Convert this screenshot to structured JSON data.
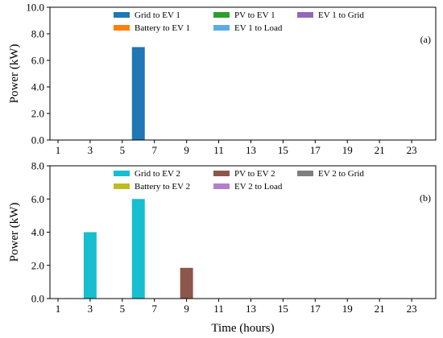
{
  "chart_data": [
    {
      "type": "bar",
      "panel_label": "(a)",
      "ylabel": "Power (kW)",
      "xlabel": "",
      "ylim": [
        0,
        10
      ],
      "yticks": [
        "0.0",
        "2.0",
        "4.0",
        "6.0",
        "8.0",
        "10.0"
      ],
      "xlim": [
        0.5,
        24.5
      ],
      "xticks": [
        "1",
        "3",
        "5",
        "7",
        "9",
        "11",
        "13",
        "15",
        "17",
        "19",
        "21",
        "23"
      ],
      "legend_position": "top-center",
      "series": [
        {
          "name": "Grid to EV 1",
          "color": "#1f77b4",
          "points": [
            {
              "x": 6,
              "y": 7.0
            }
          ]
        },
        {
          "name": "Battery to EV 1",
          "color": "#ff7f0e",
          "points": []
        },
        {
          "name": "PV to EV 1",
          "color": "#2ca02c",
          "points": []
        },
        {
          "name": "EV 1 to Load",
          "color": "#5dade2",
          "points": []
        },
        {
          "name": "EV 1 to Grid",
          "color": "#9467bd",
          "points": []
        }
      ]
    },
    {
      "type": "bar",
      "panel_label": "(b)",
      "ylabel": "Power (kW)",
      "xlabel": "Time (hours)",
      "ylim": [
        0,
        8
      ],
      "yticks": [
        "0.0",
        "2.0",
        "4.0",
        "6.0",
        "8.0"
      ],
      "xlim": [
        0.5,
        24.5
      ],
      "xticks": [
        "1",
        "3",
        "5",
        "7",
        "9",
        "11",
        "13",
        "15",
        "17",
        "19",
        "21",
        "23"
      ],
      "legend_position": "top-center",
      "series": [
        {
          "name": "Grid to EV 2",
          "color": "#17becf",
          "points": [
            {
              "x": 3,
              "y": 4.0
            },
            {
              "x": 6,
              "y": 6.0
            }
          ]
        },
        {
          "name": "Battery to EV 2",
          "color": "#bcbd22",
          "points": []
        },
        {
          "name": "PV to EV 2",
          "color": "#8c564b",
          "points": [
            {
              "x": 9,
              "y": 1.85
            }
          ]
        },
        {
          "name": "EV 2 to Load",
          "color": "#b07fd0",
          "points": []
        },
        {
          "name": "EV 2 to Grid",
          "color": "#7f7f7f",
          "points": []
        }
      ]
    }
  ]
}
